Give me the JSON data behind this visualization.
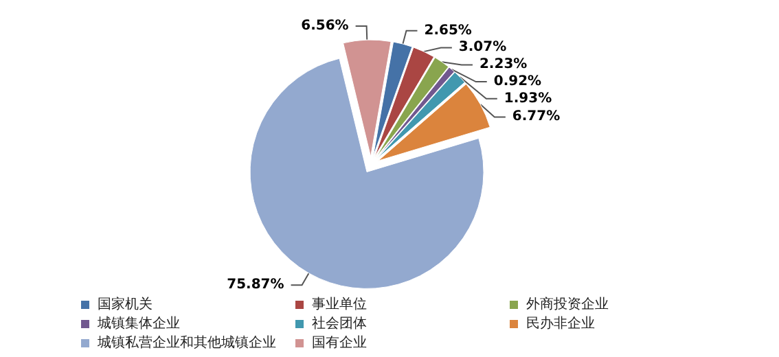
{
  "chart_data": {
    "type": "pie",
    "categories": [
      "国家机关",
      "事业单位",
      "外商投资企业",
      "城镇集体企业",
      "社会团体",
      "民办非企业",
      "城镇私营企业和其他城镇企业",
      "国有企业"
    ],
    "values": [
      2.65,
      3.07,
      2.23,
      0.92,
      1.93,
      6.77,
      75.87,
      6.56
    ],
    "value_labels": [
      "2.65%",
      "3.07%",
      "2.23%",
      "0.92%",
      "1.93%",
      "6.77%",
      "75.87%",
      "6.56%"
    ],
    "colors": [
      "#4572a7",
      "#aa4643",
      "#89a54e",
      "#71588f",
      "#4198af",
      "#db843d",
      "#93a9cf",
      "#d19392"
    ],
    "legend": "bottom"
  }
}
